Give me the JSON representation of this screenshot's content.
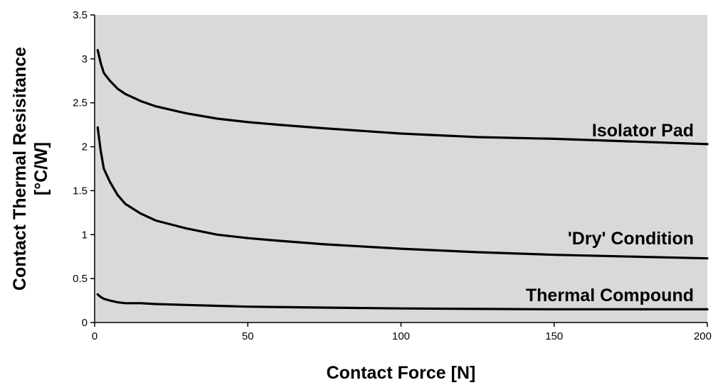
{
  "chart_data": {
    "type": "line",
    "title": "",
    "xlabel": "Contact Force [N]",
    "ylabel": [
      "Contact Thermal Resisitance",
      "[°C/W]"
    ],
    "xlim": [
      0,
      200
    ],
    "ylim": [
      0,
      3.5
    ],
    "x_ticks": [
      "0",
      "50",
      "100",
      "150",
      "200"
    ],
    "y_ticks": [
      "0",
      "0.5",
      "1",
      "1.5",
      "2",
      "2.5",
      "3",
      "3.5"
    ],
    "grid": false,
    "legend": "none",
    "series": [
      {
        "name": "Isolator Pad",
        "x": [
          1,
          2,
          3,
          5,
          7.5,
          10,
          15,
          20,
          30,
          40,
          50,
          60,
          75,
          100,
          125,
          150,
          175,
          200
        ],
        "y": [
          3.1,
          2.95,
          2.84,
          2.75,
          2.66,
          2.6,
          2.52,
          2.46,
          2.38,
          2.32,
          2.28,
          2.25,
          2.21,
          2.15,
          2.11,
          2.09,
          2.06,
          2.03
        ]
      },
      {
        "name": "'Dry' Condition",
        "x": [
          1,
          2,
          3,
          5,
          7.5,
          10,
          15,
          20,
          30,
          40,
          50,
          60,
          75,
          100,
          125,
          150,
          175,
          200
        ],
        "y": [
          2.22,
          1.95,
          1.75,
          1.6,
          1.45,
          1.35,
          1.24,
          1.16,
          1.07,
          1.0,
          0.96,
          0.93,
          0.89,
          0.84,
          0.8,
          0.77,
          0.75,
          0.73
        ]
      },
      {
        "name": "Thermal Compound",
        "x": [
          1,
          2,
          3,
          5,
          7.5,
          10,
          15,
          20,
          30,
          40,
          50,
          75,
          100,
          150,
          200
        ],
        "y": [
          0.32,
          0.29,
          0.27,
          0.25,
          0.23,
          0.22,
          0.22,
          0.21,
          0.2,
          0.19,
          0.18,
          0.17,
          0.16,
          0.15,
          0.15
        ]
      }
    ],
    "colors": {
      "plot_background": "#d9d9d9",
      "line": "#000000"
    }
  }
}
